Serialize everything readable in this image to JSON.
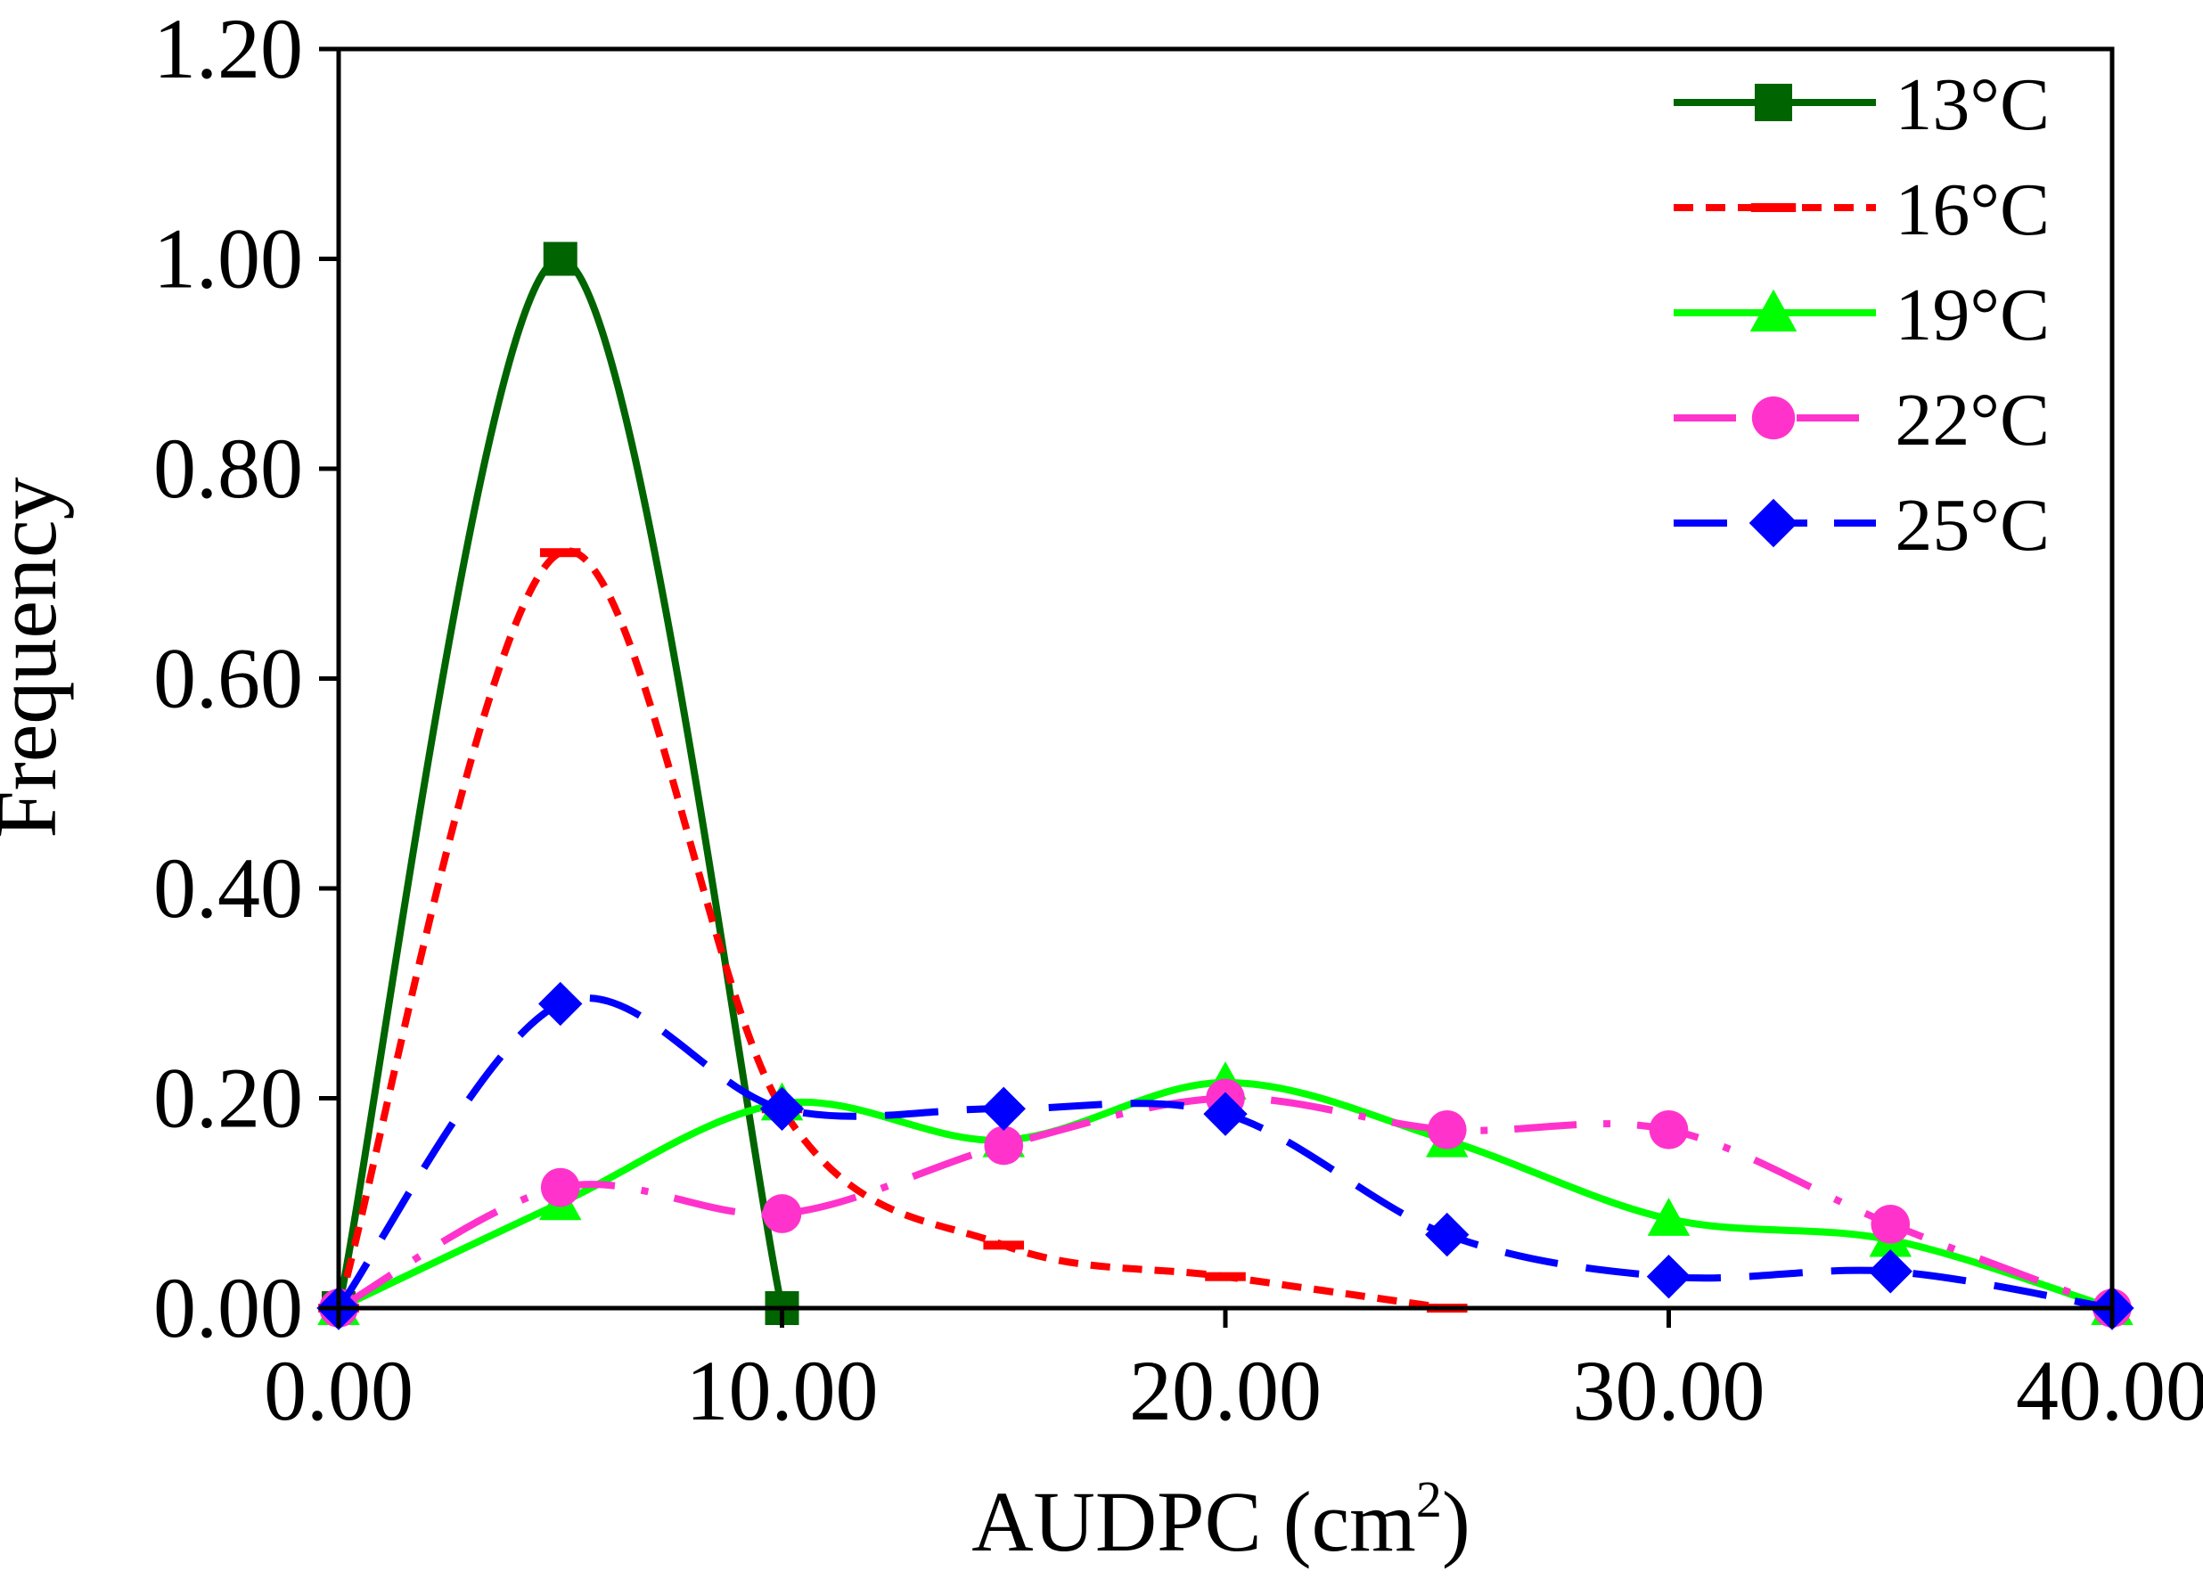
{
  "chart_data": {
    "type": "line",
    "title": "",
    "xlabel": "AUDPC (cm",
    "xlabel_sup": "2",
    "xlabel_suffix": ")",
    "ylabel": "Frequency",
    "xlim": [
      0,
      40
    ],
    "ylim": [
      0,
      1.2
    ],
    "xticks": [
      "0.00",
      "10.00",
      "20.00",
      "30.00",
      "40.00"
    ],
    "yticks": [
      "0.00",
      "0.20",
      "0.40",
      "0.60",
      "0.80",
      "1.00",
      "1.20"
    ],
    "grid": false,
    "legend_position": "top-right",
    "series": [
      {
        "name": "13°C",
        "color": "#006400",
        "marker": "square",
        "dash": "solid",
        "x": [
          0,
          5,
          10
        ],
        "values": [
          0,
          1.0,
          0
        ]
      },
      {
        "name": "16°C",
        "color": "#ff0000",
        "marker": "dash",
        "dash": "short-dash",
        "x": [
          0,
          5,
          10,
          15,
          20,
          25
        ],
        "values": [
          0,
          0.72,
          0.19,
          0.06,
          0.03,
          0
        ]
      },
      {
        "name": "19°C",
        "color": "#00ff00",
        "marker": "triangle",
        "dash": "solid",
        "x": [
          0,
          5,
          10,
          15,
          20,
          25,
          30,
          35,
          40
        ],
        "values": [
          0,
          0.1,
          0.195,
          0.16,
          0.215,
          0.16,
          0.085,
          0.065,
          0
        ]
      },
      {
        "name": "22°C",
        "color": "#ff33cc",
        "marker": "circle",
        "dash": "dash-dot",
        "x": [
          0,
          5,
          10,
          15,
          20,
          25,
          30,
          35,
          40
        ],
        "values": [
          0,
          0.115,
          0.09,
          0.155,
          0.2,
          0.17,
          0.17,
          0.08,
          0
        ]
      },
      {
        "name": "25°C",
        "color": "#0000ff",
        "marker": "diamond",
        "dash": "long-dash",
        "x": [
          0,
          5,
          10,
          15,
          20,
          25,
          30,
          35,
          40
        ],
        "values": [
          0,
          0.29,
          0.19,
          0.19,
          0.185,
          0.07,
          0.03,
          0.035,
          0
        ]
      }
    ]
  }
}
